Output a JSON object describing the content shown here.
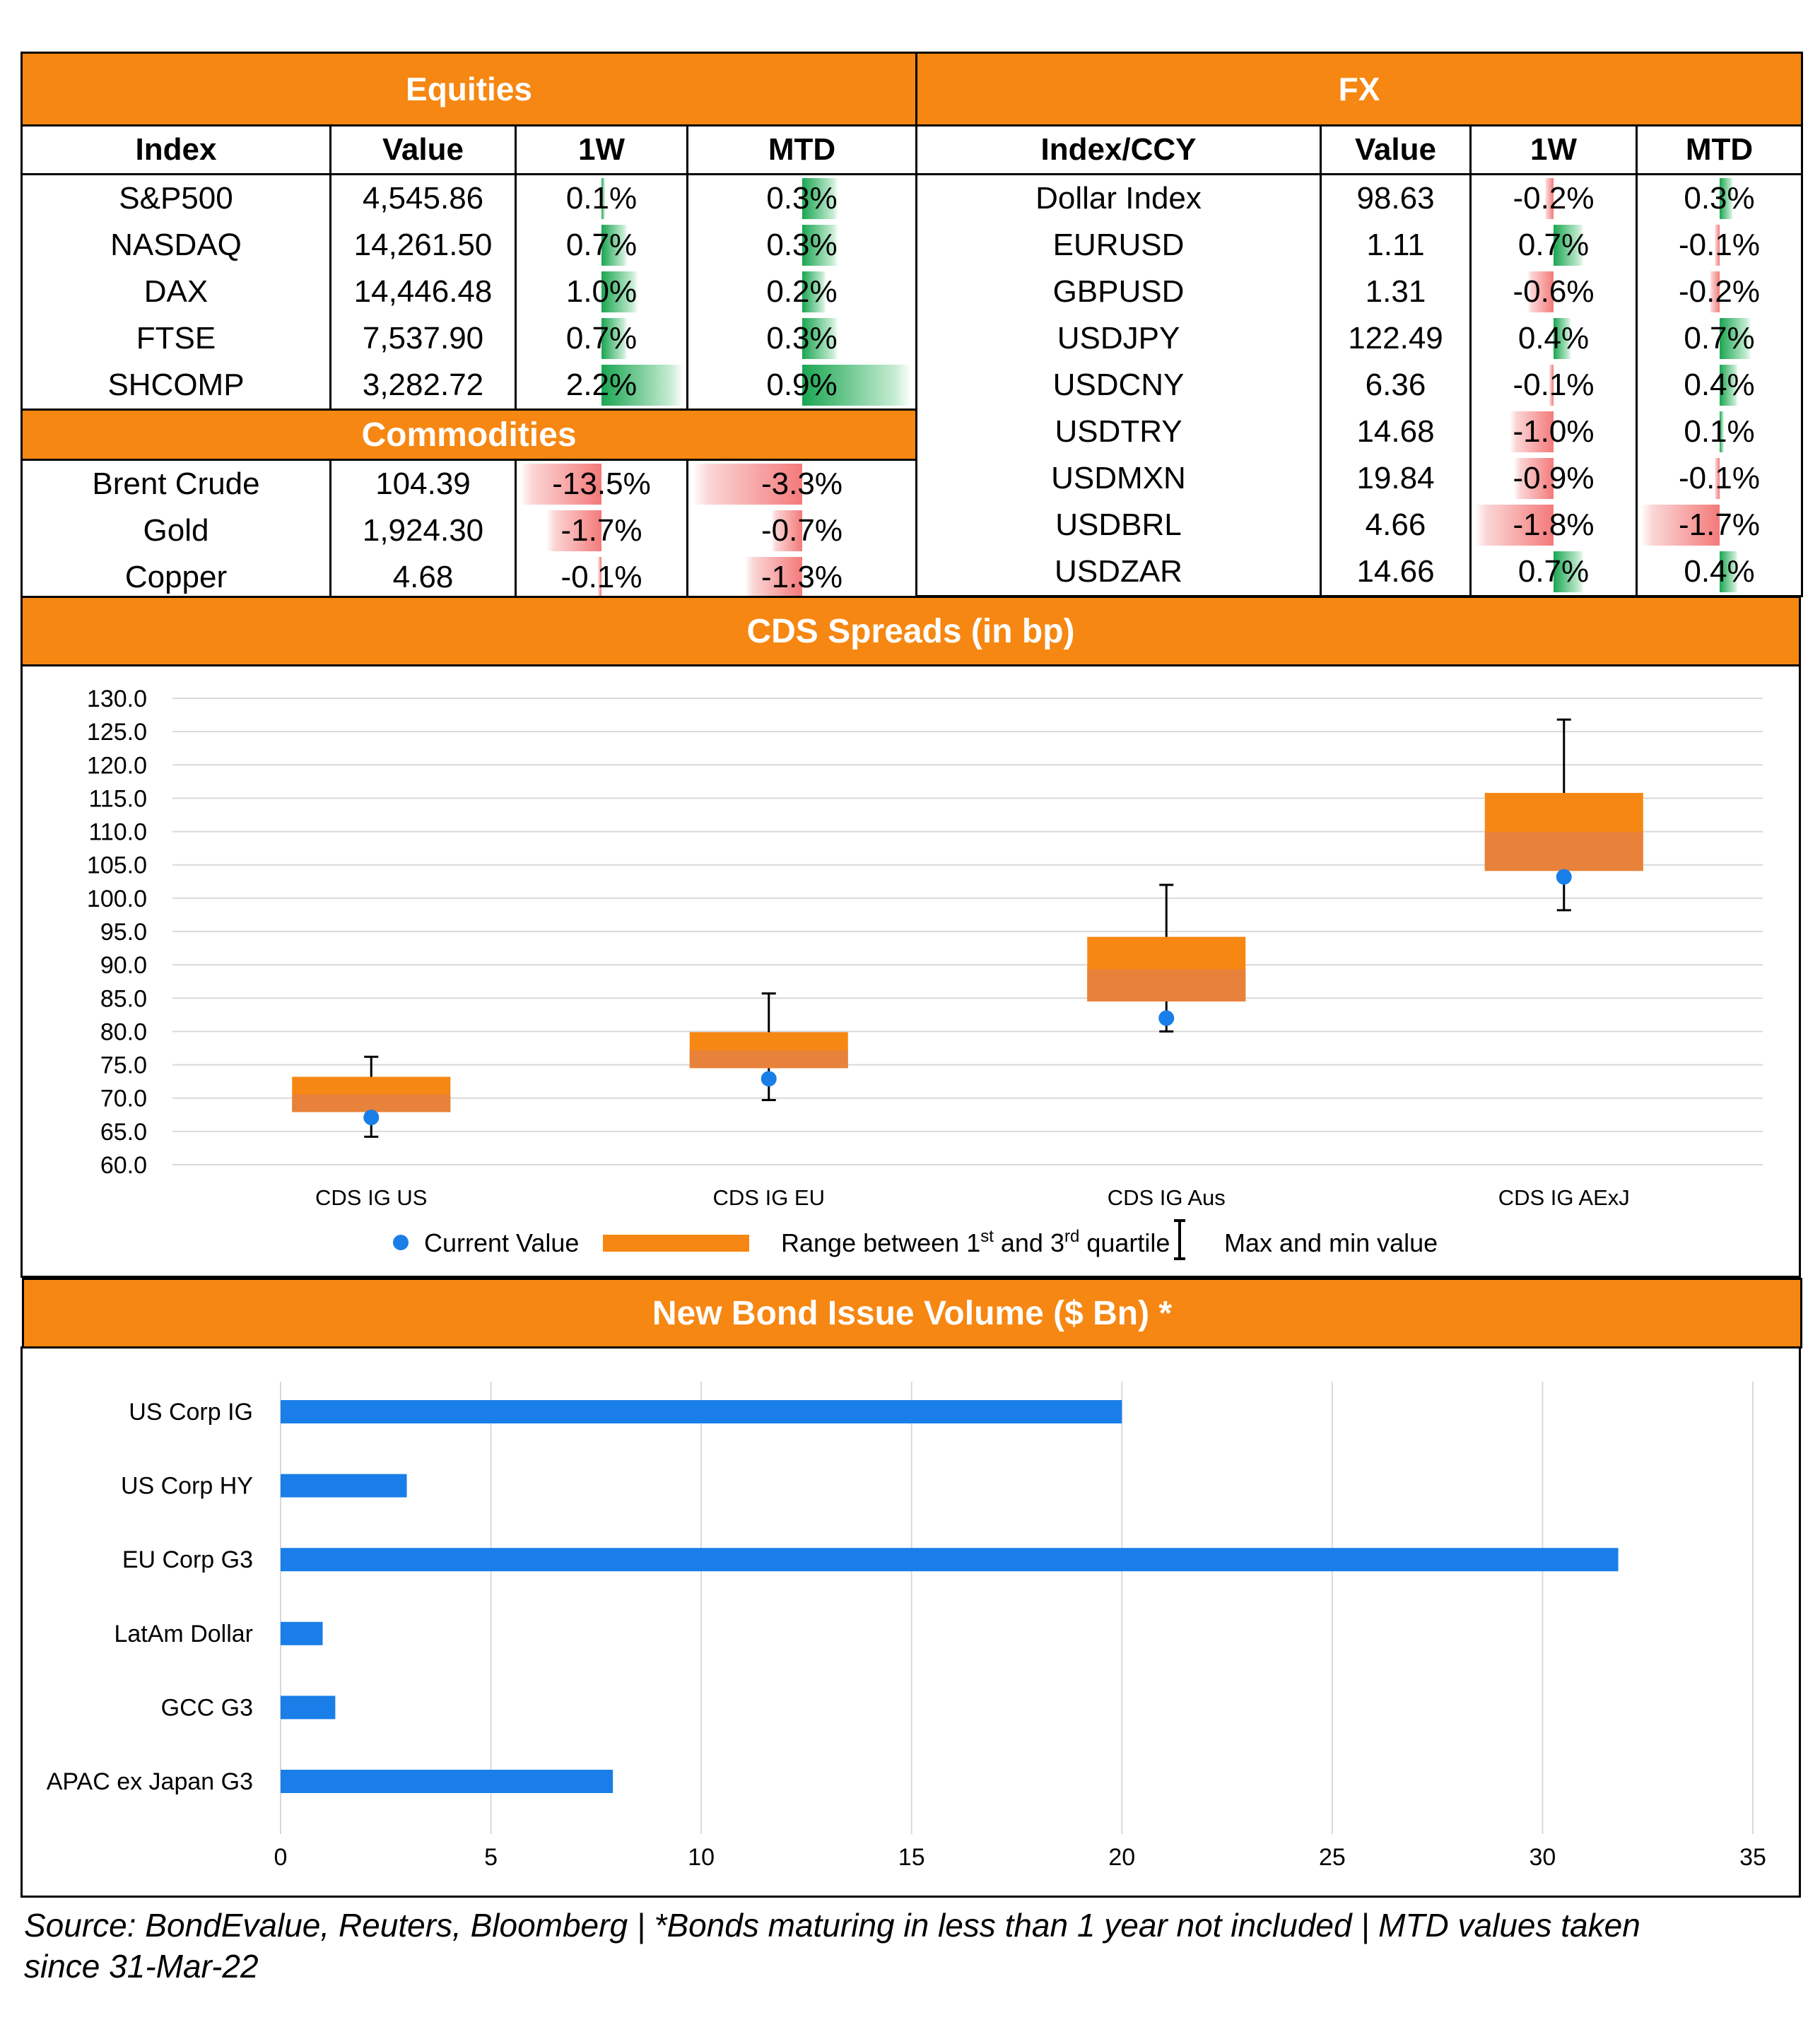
{
  "equities": {
    "title": "Equities",
    "headers": [
      "Index",
      "Value",
      "1W",
      "MTD"
    ],
    "rows": [
      {
        "name": "S&P500",
        "value": "4,545.86",
        "w1": "0.1%",
        "w1_val": 0.1,
        "mtd": "0.3%",
        "mtd_val": 0.3
      },
      {
        "name": "NASDAQ",
        "value": "14,261.50",
        "w1": "0.7%",
        "w1_val": 0.7,
        "mtd": "0.3%",
        "mtd_val": 0.3
      },
      {
        "name": "DAX",
        "value": "14,446.48",
        "w1": "1.0%",
        "w1_val": 1.0,
        "mtd": "0.2%",
        "mtd_val": 0.2
      },
      {
        "name": "FTSE",
        "value": "7,537.90",
        "w1": "0.7%",
        "w1_val": 0.7,
        "mtd": "0.3%",
        "mtd_val": 0.3
      },
      {
        "name": "SHCOMP",
        "value": "3,282.72",
        "w1": "2.2%",
        "w1_val": 2.2,
        "mtd": "0.9%",
        "mtd_val": 0.9
      }
    ]
  },
  "commodities": {
    "title": "Commodities",
    "rows": [
      {
        "name": "Brent Crude",
        "value": "104.39",
        "w1": "-13.5%",
        "w1_val": -13.5,
        "mtd": "-3.3%",
        "mtd_val": -3.3
      },
      {
        "name": "Gold",
        "value": "1,924.30",
        "w1": "-1.7%",
        "w1_val": -1.7,
        "mtd": "-0.7%",
        "mtd_val": -0.7
      },
      {
        "name": "Copper",
        "value": "4.68",
        "w1": "-0.1%",
        "w1_val": -0.1,
        "mtd": "-1.3%",
        "mtd_val": -1.3
      }
    ]
  },
  "fx": {
    "title": "FX",
    "headers": [
      "Index/CCY",
      "Value",
      "1W",
      "MTD"
    ],
    "rows": [
      {
        "name": "Dollar Index",
        "value": "98.63",
        "w1": "-0.2%",
        "w1_val": -0.2,
        "mtd": "0.3%",
        "mtd_val": 0.3
      },
      {
        "name": "EURUSD",
        "value": "1.11",
        "w1": "0.7%",
        "w1_val": 0.7,
        "mtd": "-0.1%",
        "mtd_val": -0.1
      },
      {
        "name": "GBPUSD",
        "value": "1.31",
        "w1": "-0.6%",
        "w1_val": -0.6,
        "mtd": "-0.2%",
        "mtd_val": -0.2
      },
      {
        "name": "USDJPY",
        "value": "122.49",
        "w1": "0.4%",
        "w1_val": 0.4,
        "mtd": "0.7%",
        "mtd_val": 0.7
      },
      {
        "name": "USDCNY",
        "value": "6.36",
        "w1": "-0.1%",
        "w1_val": -0.1,
        "mtd": "0.4%",
        "mtd_val": 0.4
      },
      {
        "name": "USDTRY",
        "value": "14.68",
        "w1": "-1.0%",
        "w1_val": -1.0,
        "mtd": "0.1%",
        "mtd_val": 0.1
      },
      {
        "name": "USDMXN",
        "value": "19.84",
        "w1": "-0.9%",
        "w1_val": -0.9,
        "mtd": "-0.1%",
        "mtd_val": -0.1
      },
      {
        "name": "USDBRL",
        "value": "4.66",
        "w1": "-1.8%",
        "w1_val": -1.8,
        "mtd": "-1.7%",
        "mtd_val": -1.7
      },
      {
        "name": "USDZAR",
        "value": "14.66",
        "w1": "0.7%",
        "w1_val": 0.7,
        "mtd": "0.4%",
        "mtd_val": 0.4
      }
    ]
  },
  "chart_data": [
    {
      "type": "box",
      "title": "CDS Spreads (in bp)",
      "categories": [
        "CDS IG US",
        "CDS IG EU",
        "CDS IG Aus",
        "CDS IG AExJ"
      ],
      "y_ticks": [
        "130.0",
        "125.0",
        "120.0",
        "115.0",
        "110.0",
        "105.0",
        "100.0",
        "95.0",
        "90.0",
        "85.0",
        "80.0",
        "75.0",
        "70.0",
        "65.0",
        "60.0"
      ],
      "ylim": [
        60,
        130
      ],
      "grid": true,
      "legend_position": "bottom",
      "series": [
        {
          "name": "Current Value",
          "values": [
            67.1,
            72.9,
            82.0,
            103.2
          ],
          "color": "#1a7ee8"
        },
        {
          "name": "Range between 1st and 3rd quartile",
          "q1": [
            67.9,
            74.5,
            84.5,
            104.1
          ],
          "q3": [
            73.2,
            79.9,
            94.2,
            115.8
          ],
          "color": "#f68712"
        },
        {
          "name": "Max and min value",
          "min": [
            64.2,
            69.7,
            80.0,
            98.2
          ],
          "max": [
            76.2,
            85.7,
            102.0,
            126.8
          ]
        }
      ],
      "legend": {
        "current": "Current Value",
        "range_pre": "Range between 1",
        "range_sup1": "st",
        "range_mid": " and 3",
        "range_sup2": "rd",
        "range_post": " quartile",
        "maxmin": "Max and min value"
      }
    },
    {
      "type": "bar",
      "orientation": "horizontal",
      "title": "New Bond Issue Volume ($ Bn) *",
      "categories": [
        "US Corp IG",
        "US Corp HY",
        "EU Corp G3",
        "LatAm Dollar",
        "GCC G3",
        "APAC ex Japan G3"
      ],
      "values": [
        20.0,
        3.0,
        31.8,
        1.0,
        1.3,
        7.9
      ],
      "x_ticks": [
        "0",
        "5",
        "10",
        "15",
        "20",
        "25",
        "30",
        "35"
      ],
      "xlim": [
        0,
        35
      ],
      "grid": true,
      "color": "#1a7ee8"
    }
  ],
  "footer": {
    "line1": "Source: BondEvalue, Reuters, Bloomberg | *Bonds maturing in less than 1 year not included | MTD values taken",
    "line2": "since 31-Mar-22"
  }
}
